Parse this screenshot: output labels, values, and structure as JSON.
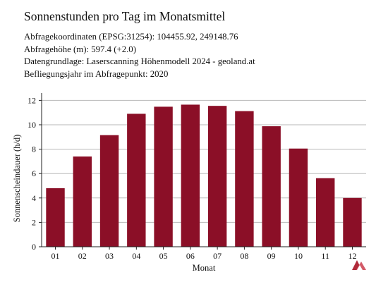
{
  "title": "Sonnenstunden pro Tag im Monatsmittel",
  "info": [
    "Abfragekoordinaten (EPSG:31254): 104455.92, 249148.76",
    "Abfragehöhe (m): 597.4 (+2.0)",
    "Datengrundlage: Laserscanning Höhenmodell 2024 - geoland.at",
    "Befliegungsjahr im Abfragepunkt: 2020"
  ],
  "logo": "red-triangle-logo",
  "chart_data": {
    "type": "bar",
    "categories": [
      "01",
      "02",
      "03",
      "04",
      "05",
      "06",
      "07",
      "08",
      "09",
      "10",
      "11",
      "12"
    ],
    "values": [
      4.8,
      7.4,
      9.15,
      10.9,
      11.48,
      11.65,
      11.55,
      11.12,
      9.88,
      8.05,
      5.62,
      4.0
    ],
    "xlabel": "Monat",
    "ylabel": "Sonnenscheindauer (h/d)",
    "ylim": [
      0,
      12.6
    ],
    "yticks": [
      0,
      2,
      4,
      6,
      8,
      10,
      12
    ],
    "bar_color": "#8b0f27",
    "grid": "horizontal",
    "legend": "none"
  }
}
